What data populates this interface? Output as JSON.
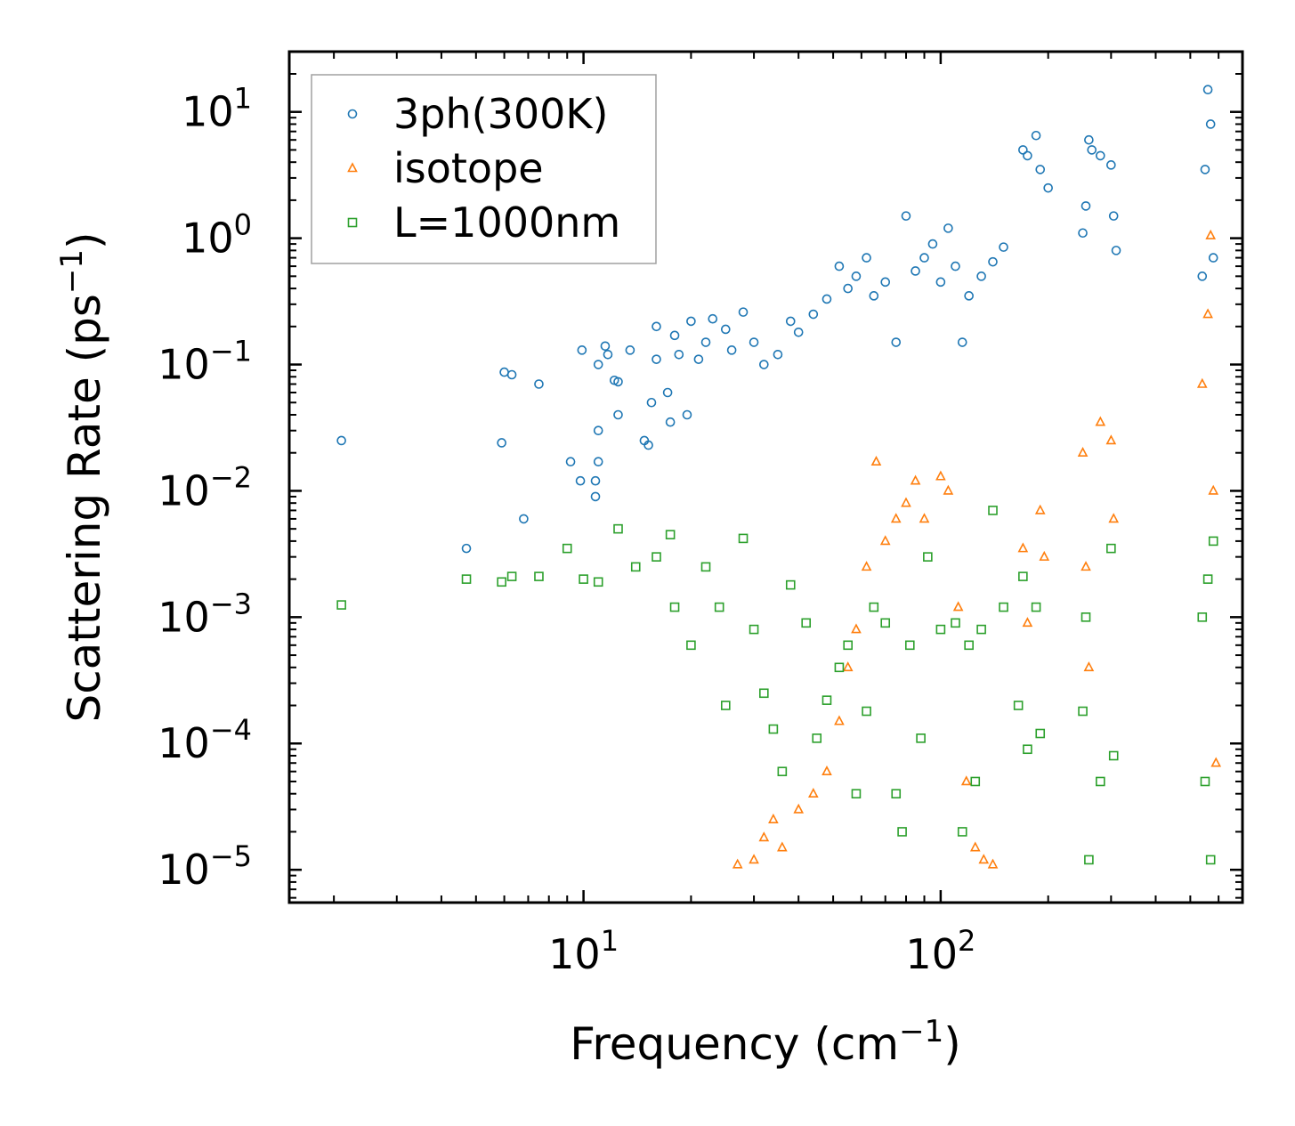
{
  "chart_data": {
    "type": "scatter",
    "xscale": "log",
    "yscale": "log",
    "xlim": [
      1.5,
      700
    ],
    "ylim": [
      5.5e-06,
      30
    ],
    "xlabel": "Frequency (cm",
    "xlabel_sup": "−1",
    "xlabel_end": ")",
    "ylabel": "Scattering Rate (ps",
    "ylabel_sup": "−1",
    "ylabel_end": ")",
    "x_ticks": [
      {
        "value": 10,
        "base": "10",
        "exp": "1"
      },
      {
        "value": 100,
        "base": "10",
        "exp": "2"
      }
    ],
    "y_ticks": [
      {
        "value": 10,
        "base": "10",
        "exp": "1"
      },
      {
        "value": 1,
        "base": "10",
        "exp": "0"
      },
      {
        "value": 0.1,
        "base": "10",
        "exp": "−1"
      },
      {
        "value": 0.01,
        "base": "10",
        "exp": "−2"
      },
      {
        "value": 0.001,
        "base": "10",
        "exp": "−3"
      },
      {
        "value": 0.0001,
        "base": "10",
        "exp": "−4"
      },
      {
        "value": 1e-05,
        "base": "10",
        "exp": "−5"
      }
    ],
    "legend_position": "top-left",
    "series": [
      {
        "name": "3ph(300K)",
        "marker": "circle",
        "color": "#1f77b4",
        "points": [
          [
            2.1,
            0.025
          ],
          [
            4.7,
            0.0035
          ],
          [
            5.9,
            0.024
          ],
          [
            6.8,
            0.006
          ],
          [
            6.0,
            0.087
          ],
          [
            6.3,
            0.083
          ],
          [
            7.5,
            0.07
          ],
          [
            9.2,
            0.017
          ],
          [
            9.8,
            0.012
          ],
          [
            9.9,
            0.13
          ],
          [
            10.8,
            0.009
          ],
          [
            10.8,
            0.012
          ],
          [
            11.0,
            0.017
          ],
          [
            11.0,
            0.03
          ],
          [
            11.0,
            0.1
          ],
          [
            11.5,
            0.14
          ],
          [
            11.7,
            0.12
          ],
          [
            12.2,
            0.075
          ],
          [
            12.5,
            0.04
          ],
          [
            12.5,
            0.073
          ],
          [
            13.5,
            0.13
          ],
          [
            14.8,
            0.025
          ],
          [
            15.2,
            0.023
          ],
          [
            15.5,
            0.05
          ],
          [
            16.0,
            0.11
          ],
          [
            16.0,
            0.2
          ],
          [
            17.2,
            0.06
          ],
          [
            17.5,
            0.035
          ],
          [
            18.0,
            0.17
          ],
          [
            18.5,
            0.12
          ],
          [
            19.5,
            0.04
          ],
          [
            20.0,
            0.22
          ],
          [
            21.0,
            0.11
          ],
          [
            22.0,
            0.15
          ],
          [
            23.0,
            0.23
          ],
          [
            25.0,
            0.19
          ],
          [
            26.0,
            0.13
          ],
          [
            28.0,
            0.26
          ],
          [
            30.0,
            0.15
          ],
          [
            32.0,
            0.1
          ],
          [
            35.0,
            0.12
          ],
          [
            38.0,
            0.22
          ],
          [
            40.0,
            0.18
          ],
          [
            44.0,
            0.25
          ],
          [
            48.0,
            0.33
          ],
          [
            52.0,
            0.6
          ],
          [
            55.0,
            0.4
          ],
          [
            58.0,
            0.5
          ],
          [
            62.0,
            0.7
          ],
          [
            65.0,
            0.35
          ],
          [
            70.0,
            0.45
          ],
          [
            75.0,
            0.15
          ],
          [
            80.0,
            1.5
          ],
          [
            85.0,
            0.55
          ],
          [
            90.0,
            0.7
          ],
          [
            95.0,
            0.9
          ],
          [
            100.0,
            0.45
          ],
          [
            105.0,
            1.2
          ],
          [
            110.0,
            0.6
          ],
          [
            115.0,
            0.15
          ],
          [
            120.0,
            0.35
          ],
          [
            130.0,
            0.5
          ],
          [
            140.0,
            0.65
          ],
          [
            150.0,
            0.85
          ],
          [
            170.0,
            5.0
          ],
          [
            175.0,
            4.5
          ],
          [
            185.0,
            6.5
          ],
          [
            190.0,
            3.5
          ],
          [
            200.0,
            2.5
          ],
          [
            250.0,
            1.1
          ],
          [
            255.0,
            1.8
          ],
          [
            260.0,
            6.0
          ],
          [
            265.0,
            5.0
          ],
          [
            280.0,
            4.5
          ],
          [
            300.0,
            3.8
          ],
          [
            305.0,
            1.5
          ],
          [
            310.0,
            0.8
          ],
          [
            540.0,
            0.5
          ],
          [
            550.0,
            3.5
          ],
          [
            560.0,
            15.0
          ],
          [
            570.0,
            8.0
          ],
          [
            580.0,
            0.7
          ]
        ]
      },
      {
        "name": "isotope",
        "marker": "triangle",
        "color": "#ff7f0e",
        "points": [
          [
            27.0,
            1.1e-05
          ],
          [
            30.0,
            1.2e-05
          ],
          [
            32.0,
            1.8e-05
          ],
          [
            34.0,
            2.5e-05
          ],
          [
            36.0,
            1.5e-05
          ],
          [
            40.0,
            3e-05
          ],
          [
            44.0,
            4e-05
          ],
          [
            48.0,
            6e-05
          ],
          [
            52.0,
            0.00015
          ],
          [
            55.0,
            0.0004
          ],
          [
            58.0,
            0.0008
          ],
          [
            62.0,
            0.0025
          ],
          [
            66.0,
            0.017
          ],
          [
            70.0,
            0.004
          ],
          [
            75.0,
            0.006
          ],
          [
            80.0,
            0.008
          ],
          [
            85.0,
            0.012
          ],
          [
            90.0,
            0.006
          ],
          [
            100.0,
            0.013
          ],
          [
            105.0,
            0.01
          ],
          [
            112.0,
            0.0012
          ],
          [
            118.0,
            5e-05
          ],
          [
            125.0,
            1.5e-05
          ],
          [
            132.0,
            1.2e-05
          ],
          [
            140.0,
            1.1e-05
          ],
          [
            170.0,
            0.0035
          ],
          [
            175.0,
            0.0009
          ],
          [
            190.0,
            0.007
          ],
          [
            195.0,
            0.003
          ],
          [
            250.0,
            0.02
          ],
          [
            255.0,
            0.0025
          ],
          [
            260.0,
            0.0004
          ],
          [
            280.0,
            0.035
          ],
          [
            300.0,
            0.025
          ],
          [
            305.0,
            0.006
          ],
          [
            540.0,
            0.07
          ],
          [
            560.0,
            0.25
          ],
          [
            570.0,
            1.05
          ],
          [
            580.0,
            0.01
          ],
          [
            590.0,
            7e-05
          ]
        ]
      },
      {
        "name": "L=1000nm",
        "marker": "square",
        "color": "#2ca02c",
        "points": [
          [
            2.1,
            0.00125
          ],
          [
            4.7,
            0.002
          ],
          [
            5.9,
            0.0019
          ],
          [
            6.3,
            0.0021
          ],
          [
            7.5,
            0.0021
          ],
          [
            9.0,
            0.0035
          ],
          [
            10.0,
            0.002
          ],
          [
            11.0,
            0.0019
          ],
          [
            12.5,
            0.005
          ],
          [
            14.0,
            0.0025
          ],
          [
            16.0,
            0.003
          ],
          [
            17.5,
            0.0045
          ],
          [
            18.0,
            0.0012
          ],
          [
            20.0,
            0.0006
          ],
          [
            22.0,
            0.0025
          ],
          [
            24.0,
            0.0012
          ],
          [
            25.0,
            0.0002
          ],
          [
            28.0,
            0.0042
          ],
          [
            30.0,
            0.0008
          ],
          [
            32.0,
            0.00025
          ],
          [
            34.0,
            0.00013
          ],
          [
            36.0,
            6e-05
          ],
          [
            38.0,
            0.0018
          ],
          [
            42.0,
            0.0009
          ],
          [
            45.0,
            0.00011
          ],
          [
            48.0,
            0.00022
          ],
          [
            52.0,
            0.0004
          ],
          [
            55.0,
            0.0006
          ],
          [
            58.0,
            4e-05
          ],
          [
            62.0,
            0.00018
          ],
          [
            65.0,
            0.0012
          ],
          [
            70.0,
            0.0009
          ],
          [
            75.0,
            4e-05
          ],
          [
            78.0,
            2e-05
          ],
          [
            82.0,
            0.0006
          ],
          [
            88.0,
            0.00011
          ],
          [
            92.0,
            0.003
          ],
          [
            100.0,
            0.0008
          ],
          [
            110.0,
            0.0009
          ],
          [
            115.0,
            2e-05
          ],
          [
            120.0,
            0.0006
          ],
          [
            125.0,
            5e-05
          ],
          [
            130.0,
            0.0008
          ],
          [
            140.0,
            0.007
          ],
          [
            150.0,
            0.0012
          ],
          [
            165.0,
            0.0002
          ],
          [
            170.0,
            0.0021
          ],
          [
            175.0,
            9e-05
          ],
          [
            185.0,
            0.0012
          ],
          [
            190.0,
            0.00012
          ],
          [
            250.0,
            0.00018
          ],
          [
            255.0,
            0.001
          ],
          [
            260.0,
            1.2e-05
          ],
          [
            280.0,
            5e-05
          ],
          [
            300.0,
            0.0035
          ],
          [
            305.0,
            8e-05
          ],
          [
            540.0,
            0.001
          ],
          [
            550.0,
            5e-05
          ],
          [
            560.0,
            0.002
          ],
          [
            570.0,
            1.2e-05
          ],
          [
            580.0,
            0.004
          ]
        ]
      }
    ]
  }
}
